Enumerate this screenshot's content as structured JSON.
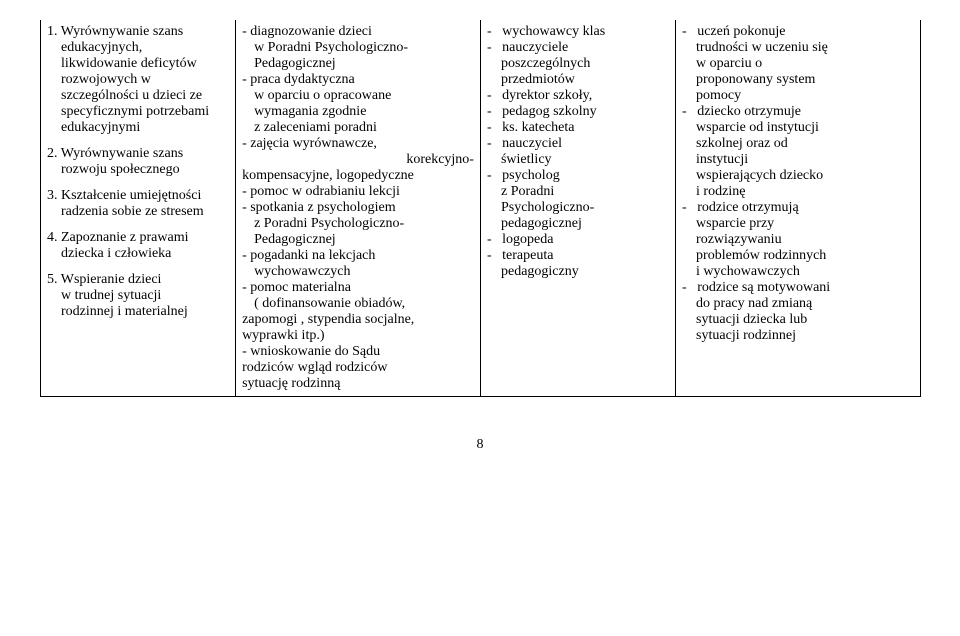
{
  "page_number": "8",
  "col1": {
    "items": [
      {
        "n": "1.",
        "first": "Wyrównywanie szans",
        "rest": [
          "edukacyjnych,",
          "likwidowanie deficytów",
          "rozwojowych w",
          "szczególności u dzieci ze",
          "specyficznymi potrzebami",
          "edukacyjnymi"
        ]
      },
      {
        "n": "2.",
        "first": "Wyrównywanie szans",
        "rest": [
          "rozwoju społecznego"
        ]
      },
      {
        "n": "3.",
        "first": "Kształcenie umiejętności",
        "rest": [
          "radzenia sobie ze stresem"
        ]
      },
      {
        "n": "4.",
        "first": "Zapoznanie z prawami",
        "rest": [
          "dziecka i człowieka"
        ]
      },
      {
        "n": "5.",
        "first": "Wspieranie dzieci",
        "rest": [
          "w trudnej sytuacji",
          "rodzinnej i materialnej"
        ]
      }
    ]
  },
  "col2": {
    "l1a": "-   diagnozowanie     dzieci",
    "l1b": "w Poradni Psychologiczno-",
    "l1c": "Pedagogicznej",
    "l2a": "-   praca dydaktyczna",
    "l2b": "w  oparciu  o  opracowane",
    "l2c": "wymagania zgodnie",
    "l2d": " z zaleceniami   poradni",
    "l3a": "- zajęcia wyrównawcze,",
    "l3b": "korekcyjno-",
    "l3c": "kompensacyjne, logopedyczne",
    "l4a": "-   pomoc w odrabianiu lekcji",
    "l5a": "-   spotkania   z  psychologiem",
    "l5b": "z  Poradni  Psychologiczno-",
    "l5c": "Pedagogicznej",
    "l6a": "-   pogadanki     na     lekcjach",
    "l6b": "wychowawczych",
    "l7a": "-  pomoc materialna",
    "l7b": "(  dofinansowanie   obiadów,",
    "l7c": "zapomogi ,  stypendia socjalne,",
    "l7d": "wyprawki itp.)",
    "l8a": "-    wnioskowanie   do   Sądu",
    "l8b": "rodziców    wgląd    rodziców",
    "l8c": "sytuację rodzinną"
  },
  "col3": {
    "lines": [
      "-   wychowawcy klas",
      "-   nauczyciele",
      "    poszczególnych",
      "    przedmiotów",
      "-   dyrektor szkoły,",
      "-   pedagog szkolny",
      "-   ks. katecheta",
      "-   nauczyciel",
      "    świetlicy",
      "-   psycholog",
      "    z Poradni",
      "    Psychologiczno-",
      "    pedagogicznej",
      "-   logopeda",
      "-   terapeuta",
      "    pedagogiczny"
    ]
  },
  "col4": {
    "lines": [
      "-   uczeń pokonuje",
      "    trudności w uczeniu się",
      "    w oparciu o",
      "    proponowany system",
      "    pomocy",
      "-   dziecko otrzymuje",
      "    wsparcie od instytucji",
      "    szkolnej oraz od",
      "    instytucji",
      "    wspierających dziecko",
      "    i rodzinę",
      "-   rodzice otrzymują",
      "    wsparcie przy",
      "    rozwiązywaniu",
      "    problemów rodzinnych",
      "    i wychowawczych",
      "-   rodzice są motywowani",
      "    do pracy nad zmianą",
      "    sytuacji dziecka lub",
      "    sytuacji rodzinnej"
    ]
  }
}
